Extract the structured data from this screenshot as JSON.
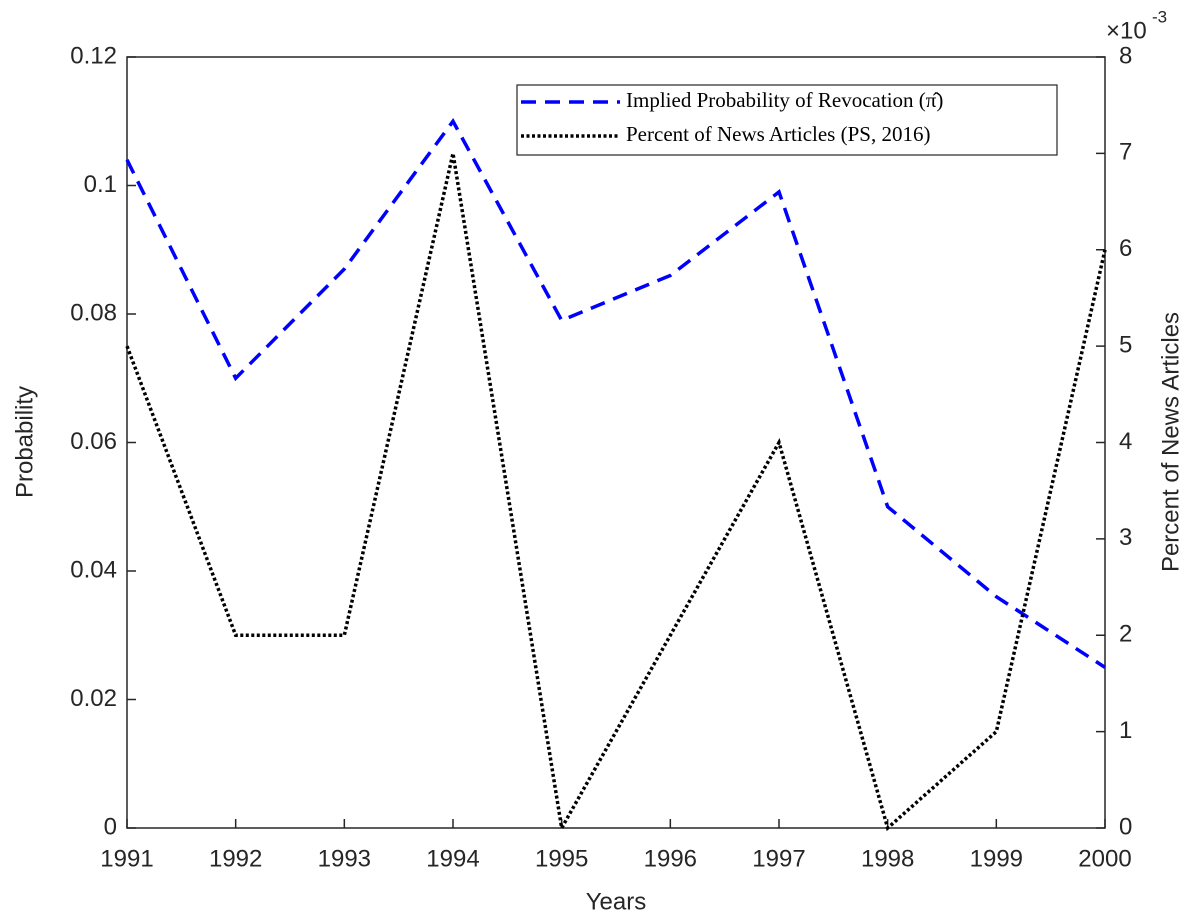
{
  "chart_data": {
    "type": "line",
    "x_label": "Years",
    "y_label": "Probability",
    "y2_label": "Percent of News Articles",
    "y2_scale_base": "×10",
    "y2_scale_exponent": "-3",
    "x": [
      1991,
      1992,
      1993,
      1994,
      1995,
      1996,
      1997,
      1998,
      1999,
      2000
    ],
    "xlim": [
      1991,
      2000
    ],
    "xticks": [
      1991,
      1992,
      1993,
      1994,
      1995,
      1996,
      1997,
      1998,
      1999,
      2000
    ],
    "ylim": [
      0,
      0.12
    ],
    "yticks": [
      0,
      0.02,
      0.04,
      0.06,
      0.08,
      0.1,
      0.12
    ],
    "y2lim": [
      0,
      8
    ],
    "y2ticks": [
      0,
      1,
      2,
      3,
      4,
      5,
      6,
      7,
      8
    ],
    "legend": "upper right",
    "grid": false,
    "series": [
      {
        "name": "Implied Probability of Revocation (π̂)",
        "color": "#0000ff",
        "line_style": "dashed",
        "values": [
          0.104,
          0.07,
          0.087,
          0.11,
          0.079,
          0.086,
          0.099,
          0.05,
          0.036,
          0.025
        ]
      },
      {
        "name": "Percent of News Articles (PS, 2016)",
        "color": "#000000",
        "line_style": "dotted",
        "axis": "y2",
        "values": [
          5,
          2,
          2,
          7,
          0,
          2,
          4,
          0,
          1,
          6
        ]
      }
    ]
  }
}
